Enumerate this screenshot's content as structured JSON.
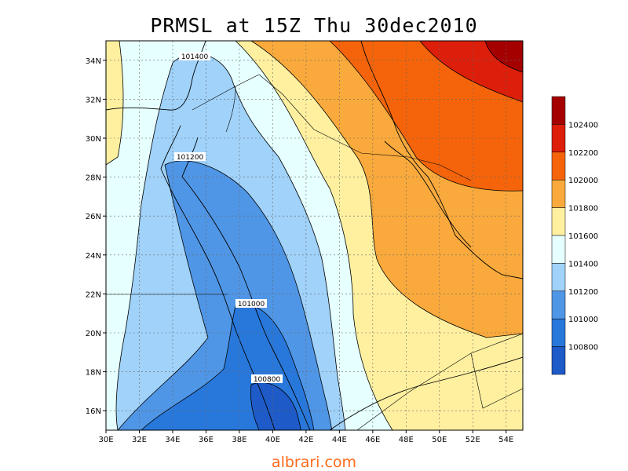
{
  "title": "PRMSL at 15Z Thu 30dec2010",
  "footer": "albrari.com",
  "axes": {
    "lon_ticks": [
      "30E",
      "32E",
      "34E",
      "36E",
      "38E",
      "40E",
      "42E",
      "44E",
      "46E",
      "48E",
      "50E",
      "52E",
      "54E"
    ],
    "lat_ticks": [
      "34N",
      "32N",
      "30N",
      "28N",
      "26N",
      "24N",
      "22N",
      "20N",
      "18N",
      "16N"
    ]
  },
  "legend": {
    "labels": [
      "102400",
      "102200",
      "102000",
      "101800",
      "101600",
      "101400",
      "101200",
      "101000",
      "100800"
    ],
    "colors": [
      "#a50000",
      "#dc1e0a",
      "#f5640a",
      "#faaa3c",
      "#fff0a0",
      "#e6ffff",
      "#a0d2fa",
      "#5096e6",
      "#2878dc",
      "#1e5ac8"
    ]
  },
  "contour_labels": [
    "101400",
    "101200",
    "101000",
    "100800"
  ],
  "chart_data": {
    "type": "heatmap",
    "title": "PRMSL at 15Z Thu 30dec2010",
    "xlim": [
      "30E",
      "55E"
    ],
    "ylim": [
      "15N",
      "35N"
    ],
    "levels": [
      100800,
      101000,
      101200,
      101400,
      101600,
      101800,
      102000,
      102200,
      102400
    ],
    "grid": true,
    "legend": "right"
  }
}
